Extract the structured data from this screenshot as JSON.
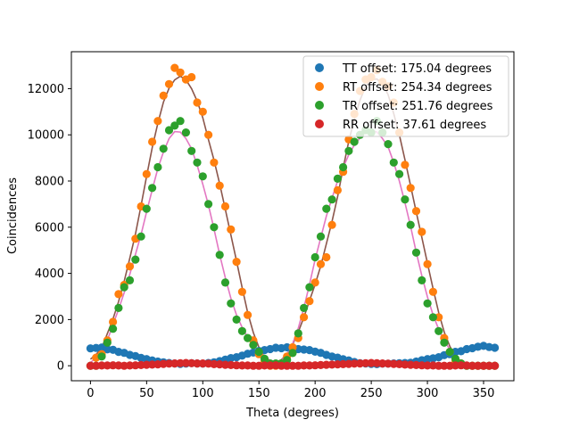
{
  "chart_data": {
    "type": "scatter",
    "xlabel": "Theta (degrees)",
    "ylabel": "Coincidences",
    "xlim": [
      -17,
      377
    ],
    "ylim": [
      -650,
      13600
    ],
    "xticks": [
      0,
      50,
      100,
      150,
      200,
      250,
      300,
      350
    ],
    "yticks": [
      0,
      2000,
      4000,
      6000,
      8000,
      10000,
      12000
    ],
    "legend_position": "top-right",
    "series": [
      {
        "name": "TT offset: 175.04 degrees",
        "color": "#1f77b4",
        "fit_color": null,
        "x": [
          0,
          5,
          10,
          15,
          20,
          25,
          30,
          35,
          40,
          45,
          50,
          55,
          60,
          65,
          70,
          75,
          80,
          85,
          90,
          95,
          100,
          105,
          110,
          115,
          120,
          125,
          130,
          135,
          140,
          145,
          150,
          155,
          160,
          165,
          170,
          175,
          180,
          185,
          190,
          195,
          200,
          205,
          210,
          215,
          220,
          225,
          230,
          235,
          240,
          245,
          250,
          255,
          260,
          265,
          270,
          275,
          280,
          285,
          290,
          295,
          300,
          305,
          310,
          315,
          320,
          325,
          330,
          335,
          340,
          345,
          350,
          355,
          360
        ],
        "y": [
          750,
          770,
          790,
          710,
          690,
          600,
          560,
          470,
          420,
          340,
          290,
          230,
          180,
          150,
          120,
          100,
          80,
          90,
          110,
          100,
          90,
          120,
          150,
          200,
          260,
          330,
          370,
          440,
          520,
          570,
          640,
          680,
          720,
          780,
          760,
          800,
          780,
          720,
          700,
          680,
          610,
          560,
          470,
          400,
          350,
          280,
          230,
          160,
          110,
          100,
          80,
          70,
          90,
          90,
          100,
          110,
          120,
          130,
          180,
          240,
          290,
          320,
          370,
          460,
          500,
          600,
          630,
          720,
          760,
          820,
          860,
          810,
          780
        ]
      },
      {
        "name": "RT offset: 254.34 degrees",
        "color": "#ff7f0e",
        "fit_color": "#8c564b",
        "x": [
          0,
          5,
          10,
          15,
          20,
          25,
          30,
          35,
          40,
          45,
          50,
          55,
          60,
          65,
          70,
          75,
          80,
          85,
          90,
          95,
          100,
          105,
          110,
          115,
          120,
          125,
          130,
          135,
          140,
          145,
          150,
          155,
          160,
          165,
          170,
          175,
          180,
          185,
          190,
          195,
          200,
          205,
          210,
          215,
          220,
          225,
          230,
          235,
          240,
          245,
          250,
          255,
          260,
          265,
          270,
          275,
          280,
          285,
          290,
          295,
          300,
          305,
          310,
          315,
          320,
          325,
          330,
          335,
          340,
          345,
          350,
          355,
          360
        ],
        "y": [
          0,
          350,
          500,
          1100,
          1900,
          3100,
          3500,
          4300,
          5500,
          6900,
          8300,
          9700,
          10600,
          11700,
          12200,
          12900,
          12700,
          12400,
          12500,
          11400,
          11000,
          10000,
          8800,
          7800,
          6900,
          5900,
          4500,
          3200,
          2200,
          1100,
          500,
          200,
          0,
          0,
          100,
          400,
          800,
          1200,
          2100,
          2800,
          3600,
          4400,
          4700,
          6100,
          7600,
          8400,
          9800,
          10900,
          11900,
          12400,
          12500,
          12800,
          12300,
          12100,
          11400,
          10100,
          8700,
          7700,
          6700,
          5800,
          4400,
          3200,
          2100,
          1200,
          600,
          200,
          100,
          0,
          0,
          0,
          0,
          0,
          0
        ]
      },
      {
        "name": "TR offset: 251.76 degrees",
        "color": "#2ca02c",
        "fit_color": "#e377c2",
        "x": [
          0,
          5,
          10,
          15,
          20,
          25,
          30,
          35,
          40,
          45,
          50,
          55,
          60,
          65,
          70,
          75,
          80,
          85,
          90,
          95,
          100,
          105,
          110,
          115,
          120,
          125,
          130,
          135,
          140,
          145,
          150,
          155,
          160,
          165,
          170,
          175,
          180,
          185,
          190,
          195,
          200,
          205,
          210,
          215,
          220,
          225,
          230,
          235,
          240,
          245,
          250,
          255,
          260,
          265,
          270,
          275,
          280,
          285,
          290,
          295,
          300,
          305,
          310,
          315,
          320,
          325,
          330,
          335,
          340,
          345,
          350,
          355,
          360
        ],
        "y": [
          0,
          0,
          400,
          1000,
          1600,
          2500,
          3400,
          3700,
          4600,
          5600,
          6800,
          7700,
          8600,
          9400,
          10200,
          10400,
          10600,
          10100,
          9300,
          8800,
          8200,
          7000,
          6000,
          4800,
          3600,
          2700,
          2000,
          1500,
          1200,
          900,
          600,
          300,
          100,
          100,
          100,
          250,
          550,
          1400,
          2500,
          3400,
          4700,
          5600,
          6800,
          7200,
          8100,
          8600,
          9300,
          9700,
          10000,
          10200,
          10100,
          10600,
          10100,
          9600,
          8800,
          8300,
          7200,
          6100,
          4900,
          3700,
          2700,
          2100,
          1500,
          1000,
          600,
          300,
          100,
          0,
          0,
          0,
          0,
          0,
          0
        ]
      },
      {
        "name": "RR offset: 37.61 degrees",
        "color": "#d62728",
        "fit_color": null,
        "x": [
          0,
          5,
          10,
          15,
          20,
          25,
          30,
          35,
          40,
          45,
          50,
          55,
          60,
          65,
          70,
          75,
          80,
          85,
          90,
          95,
          100,
          105,
          110,
          115,
          120,
          125,
          130,
          135,
          140,
          145,
          150,
          155,
          160,
          165,
          170,
          175,
          180,
          185,
          190,
          195,
          200,
          205,
          210,
          215,
          220,
          225,
          230,
          235,
          240,
          245,
          250,
          255,
          260,
          265,
          270,
          275,
          280,
          285,
          290,
          295,
          300,
          305,
          310,
          315,
          320,
          325,
          330,
          335,
          340,
          345,
          350,
          355,
          360
        ],
        "y": [
          0,
          0,
          10,
          10,
          20,
          10,
          0,
          10,
          20,
          30,
          40,
          50,
          60,
          80,
          90,
          100,
          110,
          120,
          110,
          100,
          100,
          90,
          70,
          60,
          40,
          30,
          20,
          10,
          10,
          0,
          0,
          10,
          10,
          20,
          0,
          0,
          0,
          0,
          10,
          10,
          20,
          30,
          40,
          50,
          60,
          70,
          80,
          90,
          100,
          110,
          120,
          110,
          100,
          90,
          80,
          70,
          50,
          40,
          30,
          20,
          10,
          10,
          0,
          0,
          0,
          10,
          20,
          10,
          0,
          0,
          0,
          0,
          0
        ]
      }
    ]
  }
}
